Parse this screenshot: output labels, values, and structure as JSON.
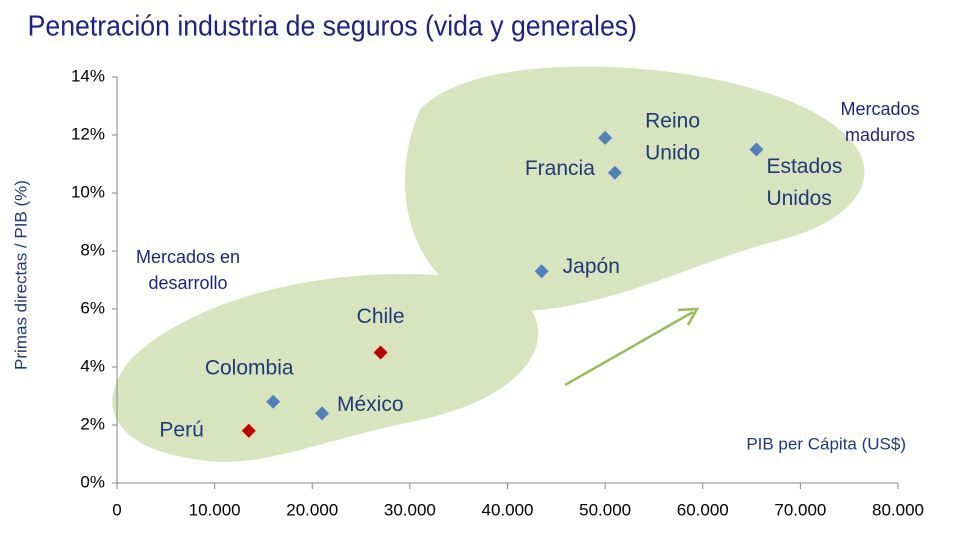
{
  "chart_data": {
    "type": "scatter",
    "title": "Penetración industria de seguros (vida y generales)",
    "ylabel": "Primas directas / PIB (%)",
    "xlabel": "PIB per Cápita (US$)",
    "annotations": [
      [
        "Mercados",
        "maduros"
      ],
      [
        "Mercados en",
        "desarrollo"
      ]
    ],
    "point_labels": [
      [
        "Perú"
      ],
      [
        "Colombia"
      ],
      [
        "México"
      ],
      [
        "Chile"
      ],
      [
        "Japón"
      ],
      [
        "Francia"
      ],
      [
        "Reino",
        "Unido"
      ],
      [
        "Estados",
        "Unidos"
      ]
    ],
    "x": [
      13500,
      16000,
      21000,
      27000,
      43500,
      51000,
      50000,
      65500
    ],
    "values": [
      1.8,
      2.8,
      2.4,
      4.5,
      7.3,
      10.7,
      11.9,
      11.5
    ],
    "colors": [
      "#c00000",
      "#4f81bd",
      "#4f81bd",
      "#c00000",
      "#4f81bd",
      "#4f81bd",
      "#4f81bd",
      "#4f81bd"
    ],
    "xlim": [
      0,
      80000
    ],
    "xticks": [
      0,
      {
        "value": 10000,
        "label": "10.000"
      },
      {
        "value": 20000,
        "label": "20.000"
      },
      {
        "value": 30000,
        "label": "30.000"
      },
      {
        "value": 40000,
        "label": "40.000"
      },
      {
        "value": 50000,
        "label": "50.000"
      },
      {
        "value": 60000,
        "label": "60.000"
      },
      {
        "value": 70000,
        "label": "70.000"
      },
      {
        "value": 80000,
        "label": "80.000"
      }
    ],
    "ylim": [
      0,
      14
    ],
    "yticks": [
      {
        "value": 0,
        "label": "0%"
      },
      {
        "value": 2,
        "label": "2%"
      },
      {
        "value": 4,
        "label": "4%"
      },
      {
        "value": 6,
        "label": "6%"
      },
      {
        "value": 8,
        "label": "8%"
      },
      {
        "value": 10,
        "label": "10%"
      },
      {
        "value": 12,
        "label": "12%"
      },
      {
        "value": 14,
        "label": "14%"
      }
    ],
    "grid": false
  }
}
